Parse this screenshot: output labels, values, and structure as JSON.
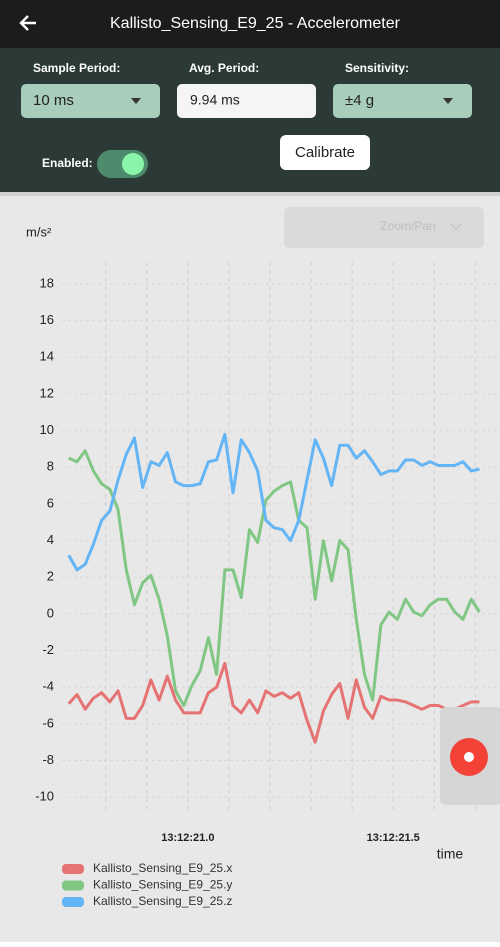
{
  "app": {
    "title": "Kallisto_Sensing_E9_25 - Accelerometer",
    "controls": {
      "sample_period": {
        "label": "Sample Period:",
        "value": "10 ms"
      },
      "avg_period": {
        "label": "Avg. Period:",
        "value": "9.94 ms"
      },
      "sensitivity": {
        "label": "Sensitivity:",
        "value": "±4 g"
      },
      "enabled": {
        "label": "Enabled:",
        "on": true
      },
      "calibrate": "Calibrate",
      "zoom_pan": "Zoom/Pan"
    }
  },
  "chart_data": {
    "type": "line",
    "ylabel": "m/s²",
    "xlabel": "time",
    "x": [
      20.71,
      20.73,
      20.75,
      20.77,
      20.79,
      20.81,
      20.83,
      20.85,
      20.87,
      20.89,
      20.91,
      20.93,
      20.95,
      20.97,
      20.99,
      21.01,
      21.03,
      21.05,
      21.07,
      21.09,
      21.11,
      21.13,
      21.15,
      21.17,
      21.19,
      21.21,
      21.23,
      21.25,
      21.27,
      21.29,
      21.31,
      21.33,
      21.35,
      21.37,
      21.39,
      21.41,
      21.43,
      21.45,
      21.47,
      21.49,
      21.51,
      21.53,
      21.55,
      21.57,
      21.59,
      21.61,
      21.63,
      21.65,
      21.67,
      21.69,
      21.71
    ],
    "series": [
      {
        "name": "Kallisto_Sensing_E9_25.x",
        "color": "#e57373",
        "values": [
          -4.9,
          -4.4,
          -5.2,
          -4.6,
          -4.3,
          -4.8,
          -4.2,
          -5.7,
          -5.7,
          -5.0,
          -3.6,
          -4.7,
          -3.4,
          -4.7,
          -5.4,
          -5.4,
          -5.4,
          -4.3,
          -4.0,
          -2.7,
          -5.0,
          -5.4,
          -4.7,
          -5.4,
          -4.2,
          -4.5,
          -4.3,
          -4.6,
          -4.3,
          -5.8,
          -7.0,
          -5.3,
          -4.4,
          -3.8,
          -5.7,
          -3.6,
          -5.1,
          -5.7,
          -4.5,
          -4.7,
          -4.7,
          -4.8,
          -5.0,
          -5.2,
          -5.0,
          -5.0,
          -5.2,
          -5.2,
          -5.0,
          -4.8,
          -4.8
        ]
      },
      {
        "name": "Kallisto_Sensing_E9_25.y",
        "color": "#81c784",
        "values": [
          8.5,
          8.3,
          8.9,
          7.8,
          7.1,
          6.8,
          5.7,
          2.4,
          0.5,
          1.7,
          2.1,
          0.8,
          -1.2,
          -4.2,
          -5.0,
          -3.9,
          -3.1,
          -1.3,
          -3.3,
          2.4,
          2.4,
          0.9,
          4.6,
          3.9,
          6.2,
          6.7,
          7.0,
          7.2,
          5.1,
          4.7,
          0.8,
          4.0,
          1.8,
          4.0,
          3.5,
          -0.3,
          -3.3,
          -4.7,
          -0.6,
          0.1,
          -0.3,
          0.8,
          0.1,
          -0.1,
          0.5,
          0.8,
          0.8,
          0.1,
          -0.3,
          0.8,
          0.1
        ]
      },
      {
        "name": "Kallisto_Sensing_E9_25.z",
        "color": "#64b5f6",
        "values": [
          3.2,
          2.4,
          2.7,
          3.8,
          5.1,
          5.6,
          7.3,
          8.7,
          9.6,
          6.9,
          8.3,
          8.1,
          8.8,
          7.2,
          7.0,
          7.0,
          7.1,
          8.3,
          8.4,
          9.8,
          6.6,
          9.5,
          8.8,
          7.8,
          5.1,
          4.7,
          4.6,
          4.0,
          5.1,
          7.3,
          9.5,
          8.5,
          7.0,
          9.2,
          9.2,
          8.5,
          8.9,
          8.3,
          7.6,
          7.8,
          7.8,
          8.4,
          8.4,
          8.1,
          8.3,
          8.1,
          8.1,
          8.1,
          8.3,
          7.8,
          7.9
        ]
      }
    ],
    "xlim": [
      20.64,
      21.76
    ],
    "xticks": [
      {
        "value": 21.0,
        "label": "13:12:21.0"
      },
      {
        "value": 21.5,
        "label": "13:12:21.5"
      }
    ],
    "xgrid": [
      20.8,
      20.9,
      21.0,
      21.1,
      21.2,
      21.3,
      21.4,
      21.5,
      21.6,
      21.7
    ],
    "ylim": [
      -10.7,
      19.2
    ],
    "yticks": [
      -10,
      -8,
      -6,
      -4,
      -2,
      0,
      2,
      4,
      6,
      8,
      10,
      12,
      14,
      16,
      18
    ],
    "grid": true
  }
}
